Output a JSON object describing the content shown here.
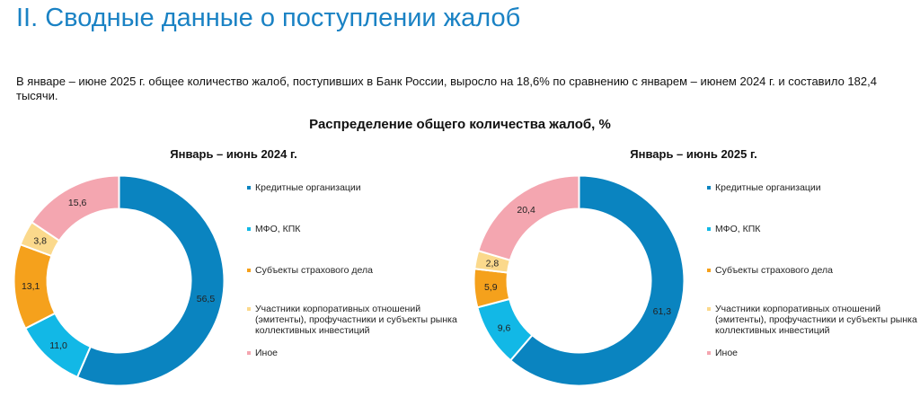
{
  "page": {
    "title": "II. Сводные данные о поступлении жалоб",
    "intro": "В январе – июне 2025 г. общее количество жалоб, поступивших в Банк России, выросло на 18,6% по сравнению с январем – июнем 2024 г. и составило 182,4 тысячи."
  },
  "colors": {
    "title": "#1a82c4",
    "credit": "#0a84c0",
    "mfo": "#12b8e6",
    "insurance": "#f5a11c",
    "participants": "#fbd98c",
    "other": "#f4a6b0"
  },
  "chart_data": {
    "type": "pie",
    "title": "Распределение общего количества жалоб, %",
    "legend": [
      {
        "label": "Кредитные организации",
        "color": "#0a84c0"
      },
      {
        "label": "МФО, КПК",
        "color": "#12b8e6"
      },
      {
        "label": "Субъекты страхового дела",
        "color": "#f5a11c"
      },
      {
        "label": "Участники корпоративных отношений\n(эмитенты), профучастники и субъекты рынка\nколлективных инвестиций",
        "color": "#fbd98c"
      },
      {
        "label": "Иное",
        "color": "#f4a6b0"
      }
    ],
    "panels": [
      {
        "title": "Январь – июнь 2024 г.",
        "values": [
          56.5,
          11.0,
          13.1,
          3.8,
          15.6
        ],
        "labels": [
          "56,5",
          "11,0",
          "13,1",
          "3,8",
          "15,6"
        ]
      },
      {
        "title": "Январь – июнь 2025 г.",
        "values": [
          61.3,
          9.6,
          5.9,
          2.8,
          20.4
        ],
        "labels": [
          "61,3",
          "9,6",
          "5,9",
          "2,8",
          "20,4"
        ]
      }
    ]
  }
}
